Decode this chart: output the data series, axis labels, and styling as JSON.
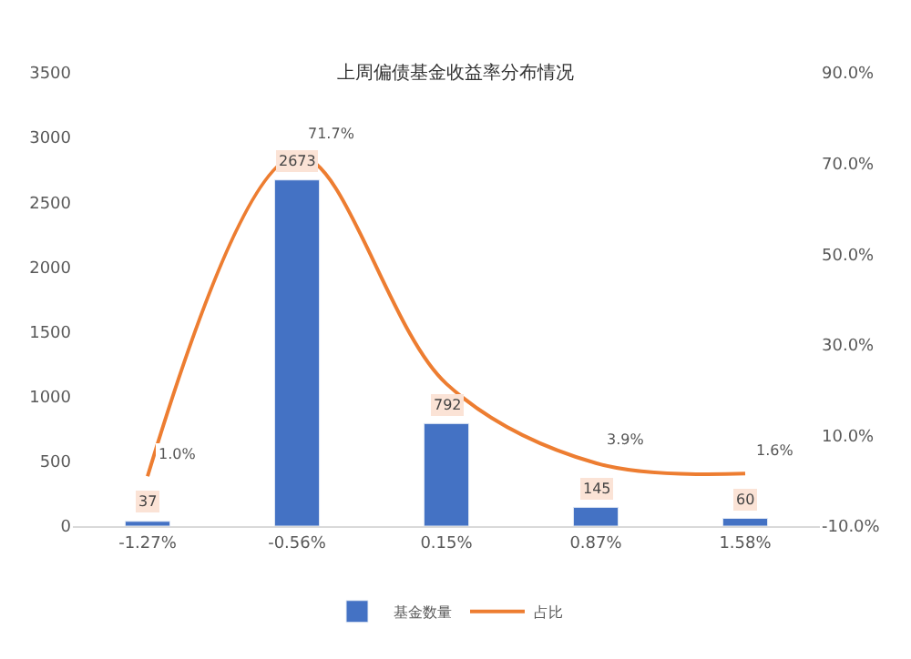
{
  "chart_data": {
    "type": "bar",
    "title": "上周偏债基金收益率分布情况",
    "categories": [
      "-1.27%",
      "-0.56%",
      "0.15%",
      "0.87%",
      "1.58%"
    ],
    "series": [
      {
        "name": "基金数量",
        "color": "#4472c4",
        "values": [
          37,
          2673,
          792,
          145,
          60
        ],
        "value_labels": [
          "37",
          "2673",
          "792",
          "145",
          "60"
        ]
      },
      {
        "name": "占比",
        "type": "line",
        "axis": "y2",
        "color": "#ed7d31",
        "values": [
          1.0,
          71.7,
          21.4,
          3.9,
          1.6
        ],
        "value_labels": [
          "1.0%",
          "71.7%",
          null,
          "3.9%",
          "1.6%"
        ]
      }
    ],
    "ylim": [
      0,
      3500
    ],
    "yticks": [
      0,
      500,
      1000,
      1500,
      2000,
      2500,
      3000,
      3500
    ],
    "y2lim": [
      -10,
      90
    ],
    "y2ticks": [
      {
        "value": -10,
        "label": "-10.0%"
      },
      {
        "value": 10,
        "label": "10.0%"
      },
      {
        "value": 30,
        "label": "30.0%"
      },
      {
        "value": 50,
        "label": "50.0%"
      },
      {
        "value": 70,
        "label": "70.0%"
      },
      {
        "value": 90,
        "label": "90.0%"
      }
    ],
    "legend": "bottom",
    "marker": "none",
    "line_style": "solid"
  }
}
